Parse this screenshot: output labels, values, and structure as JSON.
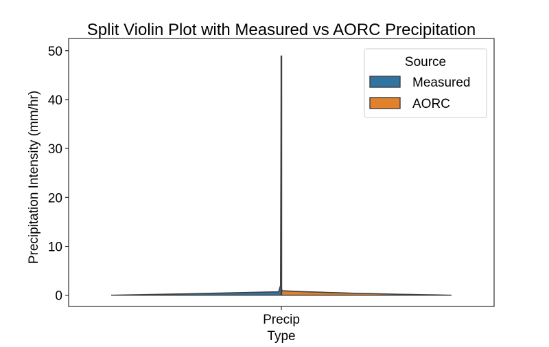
{
  "chart_data": {
    "type": "violin",
    "title": "Split Violin Plot with Measured vs AORC Precipitation",
    "xlabel": "Type",
    "ylabel": "Precipitation Intensity (mm/hr)",
    "categories": [
      "Precip"
    ],
    "ylim": [
      -2.3,
      52.5
    ],
    "yticks": [
      0,
      10,
      20,
      30,
      40,
      50
    ],
    "grid": false,
    "legend": {
      "title": "Source",
      "placement": "top-right"
    },
    "series": [
      {
        "name": "Measured",
        "side": "left",
        "color": "#3274a1",
        "max": 49.0
      },
      {
        "name": "AORC",
        "side": "right",
        "color": "#e1812c",
        "max": 1.0
      }
    ],
    "line_color": "#3f3f3f"
  }
}
